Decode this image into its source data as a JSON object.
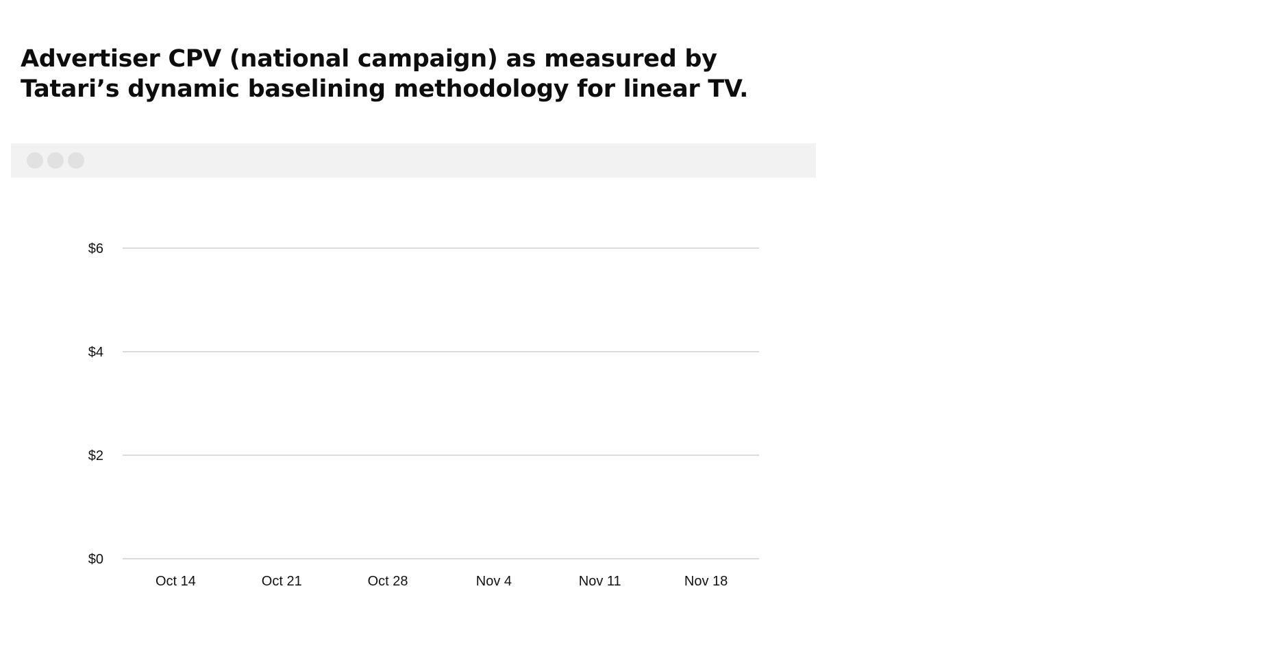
{
  "title": "Advertiser CPV (national campaign) as measured by Tatari’s dynamic baselining methodology for linear TV.",
  "window": {
    "controls": [
      "window-dot",
      "window-dot",
      "window-dot"
    ]
  },
  "colors": {
    "window_bar": "#f2f2f2",
    "window_dot": "#e1e1e1",
    "grid": "#cfcfcf",
    "text": "#111111"
  },
  "chart_data": {
    "type": "line",
    "title": "Advertiser CPV (national campaign) as measured by Tatari’s dynamic baselining methodology for linear TV.",
    "categories": [
      "Oct 14",
      "Oct 21",
      "Oct 28",
      "Nov 4",
      "Nov 11",
      "Nov 18"
    ],
    "series": [],
    "y_ticks": [
      0,
      2,
      4,
      6
    ],
    "y_tick_labels": [
      "$0",
      "$2",
      "$4",
      "$6"
    ],
    "ylim": [
      0,
      6
    ],
    "grid": true,
    "grid_axis": "y",
    "xlabel": "",
    "ylabel": ""
  }
}
